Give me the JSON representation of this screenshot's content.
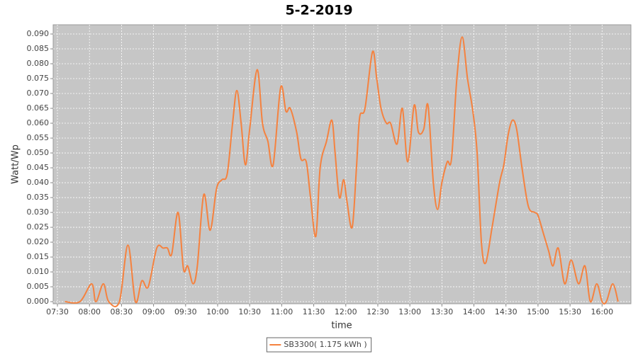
{
  "chart_data": {
    "type": "line",
    "title": "5-2-2019",
    "x_label": "time",
    "y_label": "Watt/Wp",
    "x": [
      "07:37",
      "07:51",
      "08:02",
      "08:06",
      "08:13",
      "08:18",
      "08:28",
      "08:36",
      "08:43",
      "08:49",
      "08:55",
      "09:03",
      "09:09",
      "09:13",
      "09:17",
      "09:23",
      "09:28",
      "09:32",
      "09:37",
      "09:41",
      "09:47",
      "09:53",
      "09:59",
      "10:04",
      "10:09",
      "10:14",
      "10:18",
      "10:22",
      "10:26",
      "10:30",
      "10:37",
      "10:42",
      "10:47",
      "10:52",
      "10:59",
      "11:04",
      "11:08",
      "11:14",
      "11:18",
      "11:23",
      "11:27",
      "11:32",
      "11:36",
      "11:42",
      "11:47",
      "11:50",
      "11:54",
      "11:58",
      "12:01",
      "12:06",
      "12:10",
      "12:13",
      "12:18",
      "12:25",
      "12:29",
      "12:33",
      "12:38",
      "12:42",
      "12:48",
      "12:53",
      "12:58",
      "13:04",
      "13:08",
      "13:13",
      "13:17",
      "13:22",
      "13:26",
      "13:30",
      "13:35",
      "13:39",
      "13:44",
      "13:49",
      "13:54",
      "13:59",
      "14:03",
      "14:07",
      "14:11",
      "14:17",
      "14:24",
      "14:28",
      "14:32",
      "14:36",
      "14:40",
      "14:45",
      "14:51",
      "14:57",
      "15:00",
      "15:05",
      "15:10",
      "15:14",
      "15:19",
      "15:25",
      "15:31",
      "15:38",
      "15:44",
      "15:49",
      "15:55",
      "16:00",
      "16:04",
      "16:10",
      "16:15"
    ],
    "series": [
      {
        "name": "SB3300( 1.175 kWh )",
        "color": "#f5823f",
        "values": [
          0.0,
          0.0,
          0.006,
          0.0,
          0.006,
          0.0,
          0.0,
          0.019,
          0.0,
          0.007,
          0.005,
          0.018,
          0.018,
          0.018,
          0.016,
          0.03,
          0.011,
          0.012,
          0.006,
          0.012,
          0.036,
          0.024,
          0.038,
          0.041,
          0.043,
          0.06,
          0.071,
          0.06,
          0.046,
          0.058,
          0.078,
          0.06,
          0.054,
          0.046,
          0.072,
          0.064,
          0.065,
          0.057,
          0.048,
          0.047,
          0.035,
          0.022,
          0.045,
          0.054,
          0.061,
          0.05,
          0.035,
          0.041,
          0.034,
          0.025,
          0.045,
          0.062,
          0.065,
          0.084,
          0.075,
          0.065,
          0.06,
          0.06,
          0.053,
          0.065,
          0.047,
          0.066,
          0.057,
          0.058,
          0.066,
          0.04,
          0.031,
          0.04,
          0.047,
          0.048,
          0.075,
          0.089,
          0.075,
          0.064,
          0.05,
          0.02,
          0.013,
          0.025,
          0.04,
          0.046,
          0.056,
          0.061,
          0.058,
          0.045,
          0.032,
          0.03,
          0.029,
          0.023,
          0.017,
          0.012,
          0.018,
          0.006,
          0.014,
          0.006,
          0.012,
          0.0,
          0.006,
          0.0,
          0.0,
          0.006,
          0.0
        ]
      }
    ],
    "xlim": [
      "07:26",
      "16:27"
    ],
    "xticks": [
      "07:30",
      "08:00",
      "08:30",
      "09:00",
      "09:30",
      "10:00",
      "10:30",
      "11:00",
      "11:30",
      "12:00",
      "12:30",
      "13:00",
      "13:30",
      "14:00",
      "14:30",
      "15:00",
      "15:30",
      "16:00"
    ],
    "ylim": [
      -0.0007,
      0.0931
    ],
    "yticks": [
      {
        "value": 0,
        "label": "0.000"
      },
      {
        "value": 0.005,
        "label": "0.005"
      },
      {
        "value": 0.01,
        "label": "0.010"
      },
      {
        "value": 0.015,
        "label": "0.015"
      },
      {
        "value": 0.02,
        "label": "0.020"
      },
      {
        "value": 0.025,
        "label": "0.025"
      },
      {
        "value": 0.03,
        "label": "0.030"
      },
      {
        "value": 0.035,
        "label": "0.035"
      },
      {
        "value": 0.04,
        "label": "0.040"
      },
      {
        "value": 0.045,
        "label": "0.045"
      },
      {
        "value": 0.05,
        "label": "0.050"
      },
      {
        "value": 0.055,
        "label": "0.055"
      },
      {
        "value": 0.06,
        "label": "0.060"
      },
      {
        "value": 0.065,
        "label": "0.065"
      },
      {
        "value": 0.07,
        "label": "0.070"
      },
      {
        "value": 0.075,
        "label": "0.075"
      },
      {
        "value": 0.08,
        "label": "0.080"
      },
      {
        "value": 0.085,
        "label": "0.085"
      },
      {
        "value": 0.09,
        "label": "0.090"
      }
    ],
    "grid": true,
    "legend": "bottom"
  }
}
